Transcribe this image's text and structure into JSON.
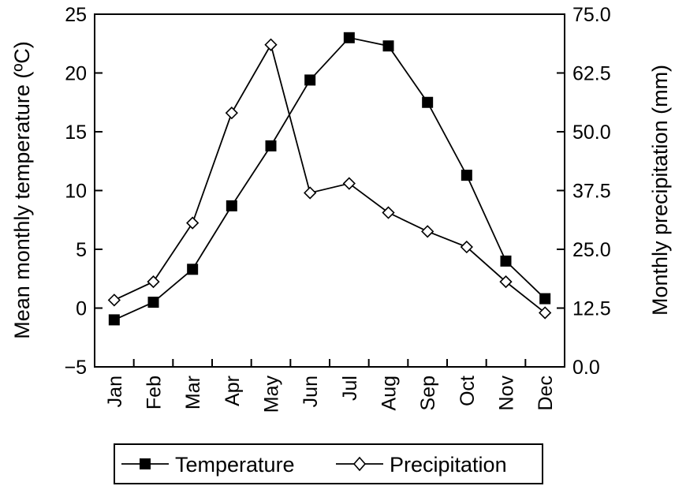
{
  "chart_data": {
    "type": "line",
    "categories": [
      "Jan",
      "Feb",
      "Mar",
      "Apr",
      "May",
      "Jun",
      "Jul",
      "Aug",
      "Sep",
      "Oct",
      "Nov",
      "Dec"
    ],
    "series": [
      {
        "name": "Temperature",
        "axis": "left",
        "marker": "filled-square",
        "values": [
          -1.0,
          0.5,
          3.3,
          8.7,
          13.8,
          19.4,
          23.0,
          22.3,
          17.5,
          11.3,
          4.0,
          0.8
        ]
      },
      {
        "name": "Precipitation",
        "axis": "right",
        "marker": "open-diamond",
        "values": [
          14.2,
          18.1,
          30.6,
          54.0,
          68.5,
          37.0,
          39.0,
          32.8,
          28.8,
          25.5,
          18.1,
          11.5
        ]
      }
    ],
    "ylabel": "Mean monthly temperature (ºC)",
    "y2label": "Monthly precipitation (mm)",
    "ylim": [
      -5,
      25
    ],
    "y2lim": [
      0,
      75
    ],
    "yticks": [
      "−5",
      "0",
      "5",
      "10",
      "15",
      "20",
      "25"
    ],
    "y2ticks": [
      "0.0",
      "12.5",
      "25.0",
      "37.5",
      "50.0",
      "62.5",
      "75.0"
    ],
    "grid": false,
    "legend_position": "bottom"
  }
}
